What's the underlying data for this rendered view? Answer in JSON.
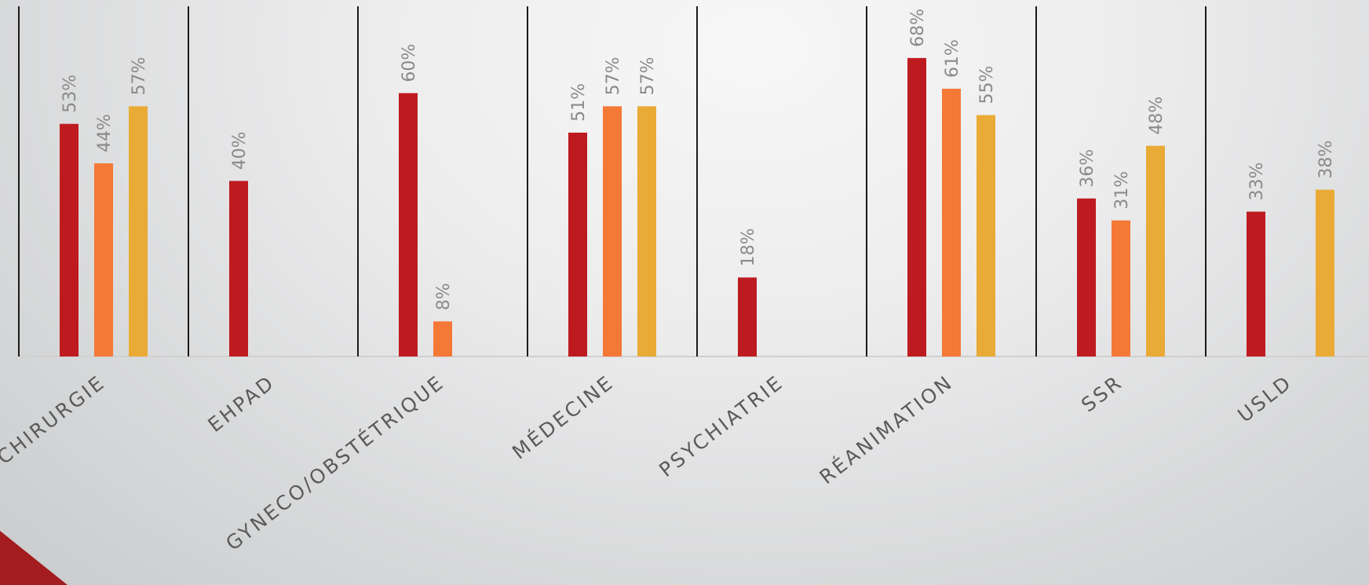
{
  "chart_data": {
    "type": "bar",
    "title": "",
    "xlabel": "",
    "ylabel": "",
    "ylim": [
      0,
      75
    ],
    "grid": false,
    "legend": "none",
    "categories": [
      "CHIRURGIE",
      "EHPAD",
      "GYNECO/OBSTÉTRIQUE",
      "MÉDECINE",
      "PSYCHIATRIE",
      "RÉANIMATION",
      "SSR",
      "USLD"
    ],
    "series": [
      {
        "color": "#be1b20",
        "values": [
          53,
          40,
          60,
          51,
          18,
          68,
          36,
          33
        ]
      },
      {
        "color": "#f47836",
        "values": [
          44,
          null,
          8,
          57,
          null,
          61,
          31,
          null
        ]
      },
      {
        "color": "#e9aa36",
        "values": [
          57,
          null,
          null,
          57,
          null,
          55,
          48,
          38
        ]
      }
    ],
    "value_labels": [
      [
        "53%",
        "40%",
        "60%",
        "51%",
        "18%",
        "68%",
        "36%",
        "33%"
      ],
      [
        "44%",
        null,
        "8%",
        "57%",
        null,
        "61%",
        "31%",
        null
      ],
      [
        "57%",
        null,
        null,
        "57%",
        null,
        "55%",
        "48%",
        "38%"
      ]
    ]
  },
  "colors": {
    "divider": "#1a1a1a",
    "corner_accent": "#a31c1f"
  }
}
